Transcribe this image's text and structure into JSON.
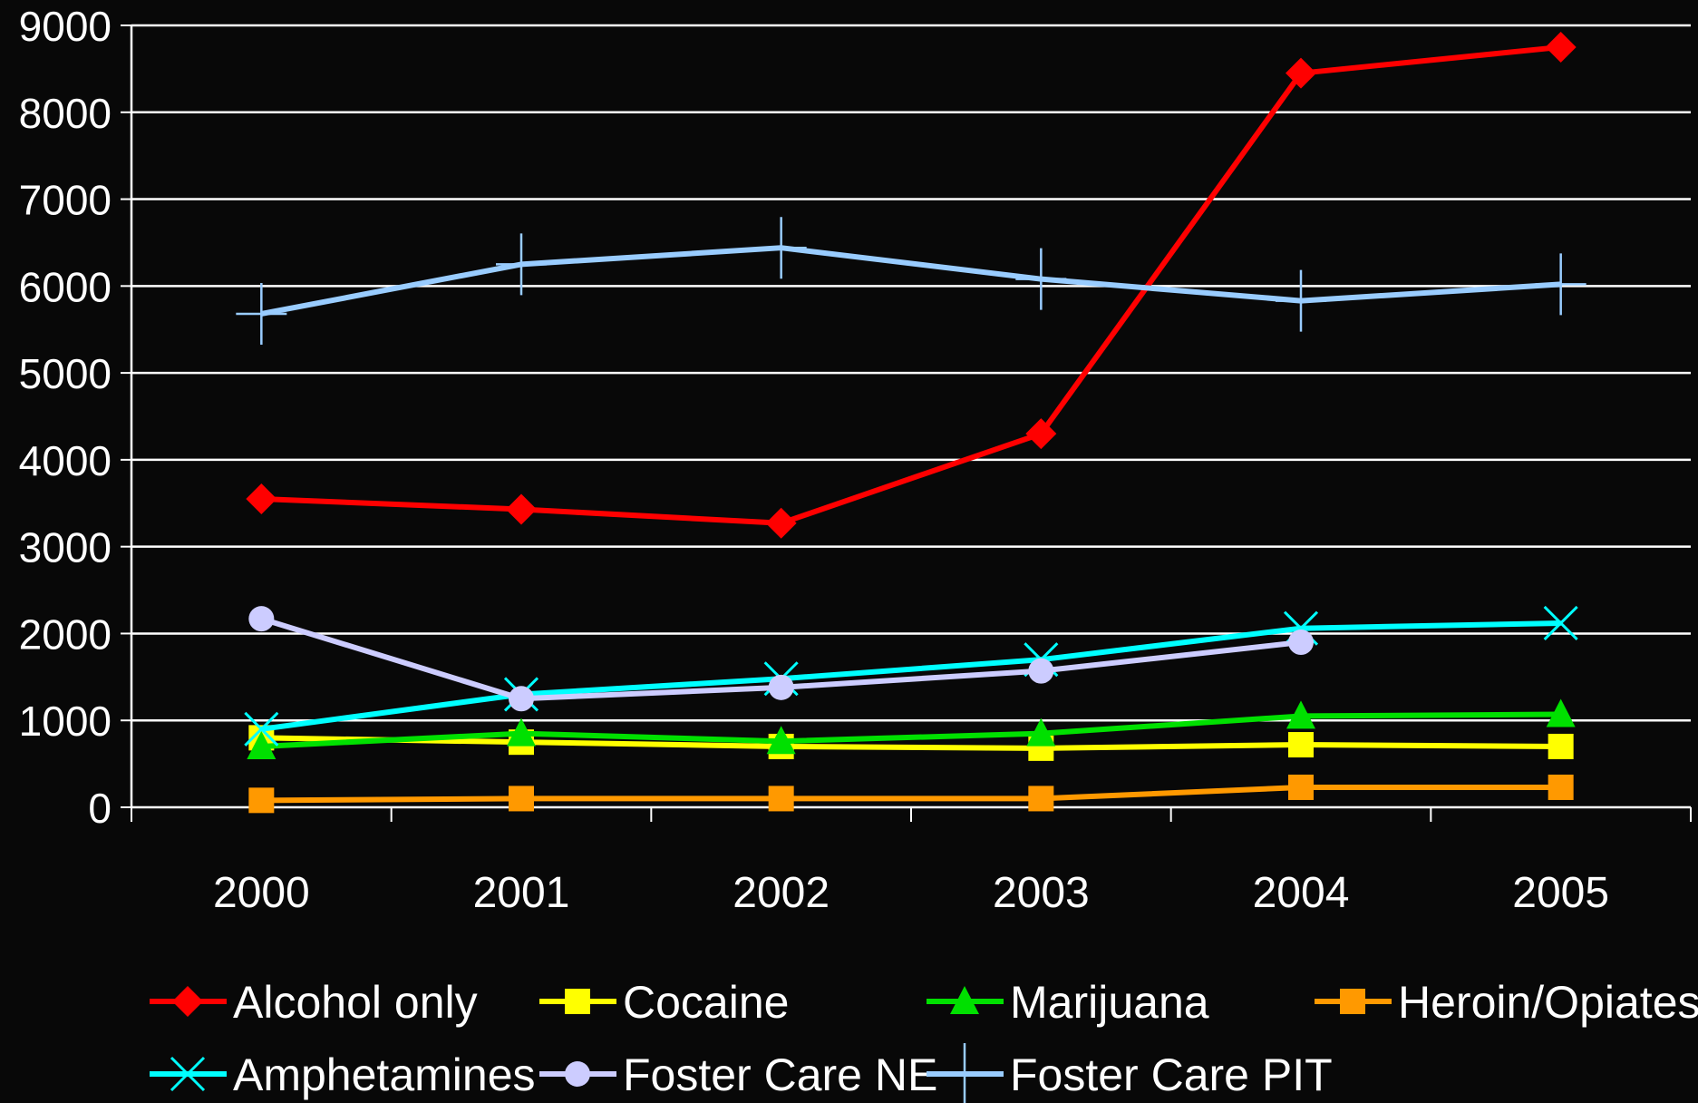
{
  "chart_data": {
    "type": "line",
    "title": "",
    "xlabel": "",
    "ylabel": "",
    "categories": [
      "2000",
      "2001",
      "2002",
      "2003",
      "2004",
      "2005"
    ],
    "ylim": [
      0,
      9000
    ],
    "yticks": [
      "0",
      "1000",
      "2000",
      "3000",
      "4000",
      "5000",
      "6000",
      "7000",
      "8000",
      "9000"
    ],
    "grid": "horizontal",
    "legend_position": "bottom",
    "series": [
      {
        "name": "Alcohol only",
        "color": "#ff0000",
        "marker": "diamond",
        "values": [
          3550,
          3430,
          3270,
          4300,
          8450,
          8750
        ]
      },
      {
        "name": "Cocaine",
        "color": "#ffff00",
        "marker": "square",
        "values": [
          800,
          750,
          700,
          680,
          720,
          700
        ]
      },
      {
        "name": "Marijuana",
        "color": "#00e000",
        "marker": "triangle",
        "values": [
          700,
          850,
          760,
          850,
          1050,
          1070
        ]
      },
      {
        "name": "Heroin/Opiates",
        "color": "#ff9900",
        "marker": "square",
        "values": [
          80,
          100,
          100,
          100,
          230,
          230
        ]
      },
      {
        "name": "Amphetamines",
        "color": "#00ffff",
        "marker": "x",
        "values": [
          900,
          1300,
          1480,
          1700,
          2060,
          2120
        ]
      },
      {
        "name": "Foster Care NE",
        "color": "#ccccff",
        "marker": "circle",
        "values": [
          2170,
          1250,
          1380,
          1570,
          1900,
          null
        ]
      },
      {
        "name": "Foster Care PIT",
        "color": "#99ccff",
        "marker": "plus",
        "values": [
          5680,
          6250,
          6440,
          6080,
          5830,
          6020
        ]
      }
    ]
  }
}
